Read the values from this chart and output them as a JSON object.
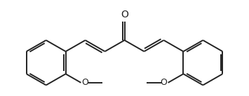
{
  "background_color": "#ffffff",
  "line_color": "#222222",
  "line_width": 1.4,
  "dbo": 0.055,
  "figsize": [
    3.55,
    1.38
  ],
  "dpi": 100,
  "xlim": [
    -2.8,
    2.8
  ],
  "ylim": [
    -1.1,
    1.1
  ]
}
